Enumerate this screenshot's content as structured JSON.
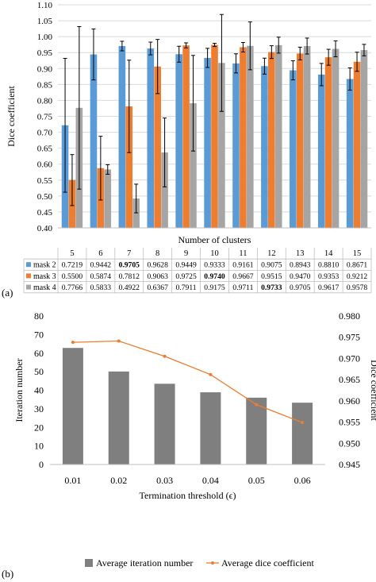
{
  "panel_labels": {
    "a": "(a)",
    "b": "(b)"
  },
  "colors": {
    "mask2": "#5b9bd5",
    "mask3": "#ed7d31",
    "mask4": "#a5a5a5",
    "bar_b": "#7f7f7f",
    "line_b": "#ed7d31",
    "bold_highlight": "#000000"
  },
  "chart_data": [
    {
      "type": "bar",
      "panel": "a",
      "title": "",
      "xlabel": "Number of clusters",
      "ylabel": "Dice coefficient",
      "ylim": [
        0.4,
        1.1
      ],
      "yticks": [
        "0.40",
        "0.45",
        "0.50",
        "0.55",
        "0.60",
        "0.65",
        "0.70",
        "0.75",
        "0.80",
        "0.85",
        "0.90",
        "0.95",
        "1.00",
        "1.05",
        "1.10"
      ],
      "categories": [
        "5",
        "6",
        "7",
        "8",
        "9",
        "10",
        "11",
        "12",
        "13",
        "14",
        "15"
      ],
      "series": [
        {
          "name": "mask 2",
          "color": "#5b9bd5",
          "values": [
            0.7219,
            0.9442,
            0.9705,
            0.9628,
            0.9449,
            0.9333,
            0.9161,
            0.9075,
            0.8943,
            0.881,
            0.8671
          ],
          "labels": [
            "0.7219",
            "0.9442",
            "0.9705",
            "0.9628",
            "0.9449",
            "0.9333",
            "0.9161",
            "0.9075",
            "0.8943",
            "0.8810",
            "0.8671"
          ],
          "bold": [
            false,
            false,
            true,
            false,
            false,
            false,
            false,
            false,
            false,
            false,
            false
          ],
          "err": [
            0.21,
            0.08,
            0.015,
            0.02,
            0.025,
            0.03,
            0.03,
            0.025,
            0.03,
            0.035,
            0.035
          ]
        },
        {
          "name": "mask 3",
          "color": "#ed7d31",
          "values": [
            0.55,
            0.5874,
            0.7812,
            0.9063,
            0.9725,
            0.974,
            0.9667,
            0.9515,
            0.947,
            0.9353,
            0.9212
          ],
          "labels": [
            "0.5500",
            "0.5874",
            "0.7812",
            "0.9063",
            "0.9725",
            "0.9740",
            "0.9667",
            "0.9515",
            "0.9470",
            "0.9353",
            "0.9212"
          ],
          "bold": [
            false,
            false,
            false,
            false,
            false,
            true,
            false,
            false,
            false,
            false,
            false
          ],
          "err": [
            0.08,
            0.1,
            0.145,
            0.085,
            0.008,
            0.005,
            0.015,
            0.02,
            0.02,
            0.025,
            0.03
          ]
        },
        {
          "name": "mask 4",
          "color": "#a5a5a5",
          "values": [
            0.7766,
            0.5833,
            0.4922,
            0.6367,
            0.7911,
            0.9175,
            0.9711,
            0.9733,
            0.9705,
            0.9617,
            0.9578
          ],
          "labels": [
            "0.7766",
            "0.5833",
            "0.4922",
            "0.6367",
            "0.7911",
            "0.9175",
            "0.9711",
            "0.9733",
            "0.9705",
            "0.9617",
            "0.9578"
          ],
          "bold": [
            false,
            false,
            false,
            false,
            false,
            false,
            false,
            true,
            false,
            false,
            false
          ],
          "err": [
            0.255,
            0.015,
            0.045,
            0.108,
            0.15,
            0.152,
            0.075,
            0.025,
            0.025,
            0.025,
            0.018
          ]
        }
      ]
    },
    {
      "type": "bar+line",
      "panel": "b",
      "title": "",
      "xlabel": "Termination threshold (ϵ)",
      "ylabel": "Iteration number",
      "y2label": "Dice coefficient",
      "ylim": [
        0,
        80
      ],
      "yticks": [
        "0",
        "10",
        "20",
        "30",
        "40",
        "50",
        "60",
        "70",
        "80"
      ],
      "y2lim": [
        0.945,
        0.98
      ],
      "y2ticks": [
        "0.945",
        "0.950",
        "0.955",
        "0.960",
        "0.965",
        "0.970",
        "0.975",
        "0.980"
      ],
      "categories": [
        "0.01",
        "0.02",
        "0.03",
        "0.04",
        "0.05",
        "0.06"
      ],
      "series": [
        {
          "name": "Average iteration number",
          "kind": "bar",
          "axis": "left",
          "color": "#7f7f7f",
          "values": [
            62.8,
            50.1,
            43.5,
            38.9,
            36.0,
            33.3
          ]
        },
        {
          "name": "Average dice coefficient",
          "kind": "line",
          "axis": "right",
          "color": "#ed7d31",
          "values": [
            0.9738,
            0.9741,
            0.9705,
            0.9662,
            0.9591,
            0.9549
          ]
        }
      ]
    }
  ]
}
